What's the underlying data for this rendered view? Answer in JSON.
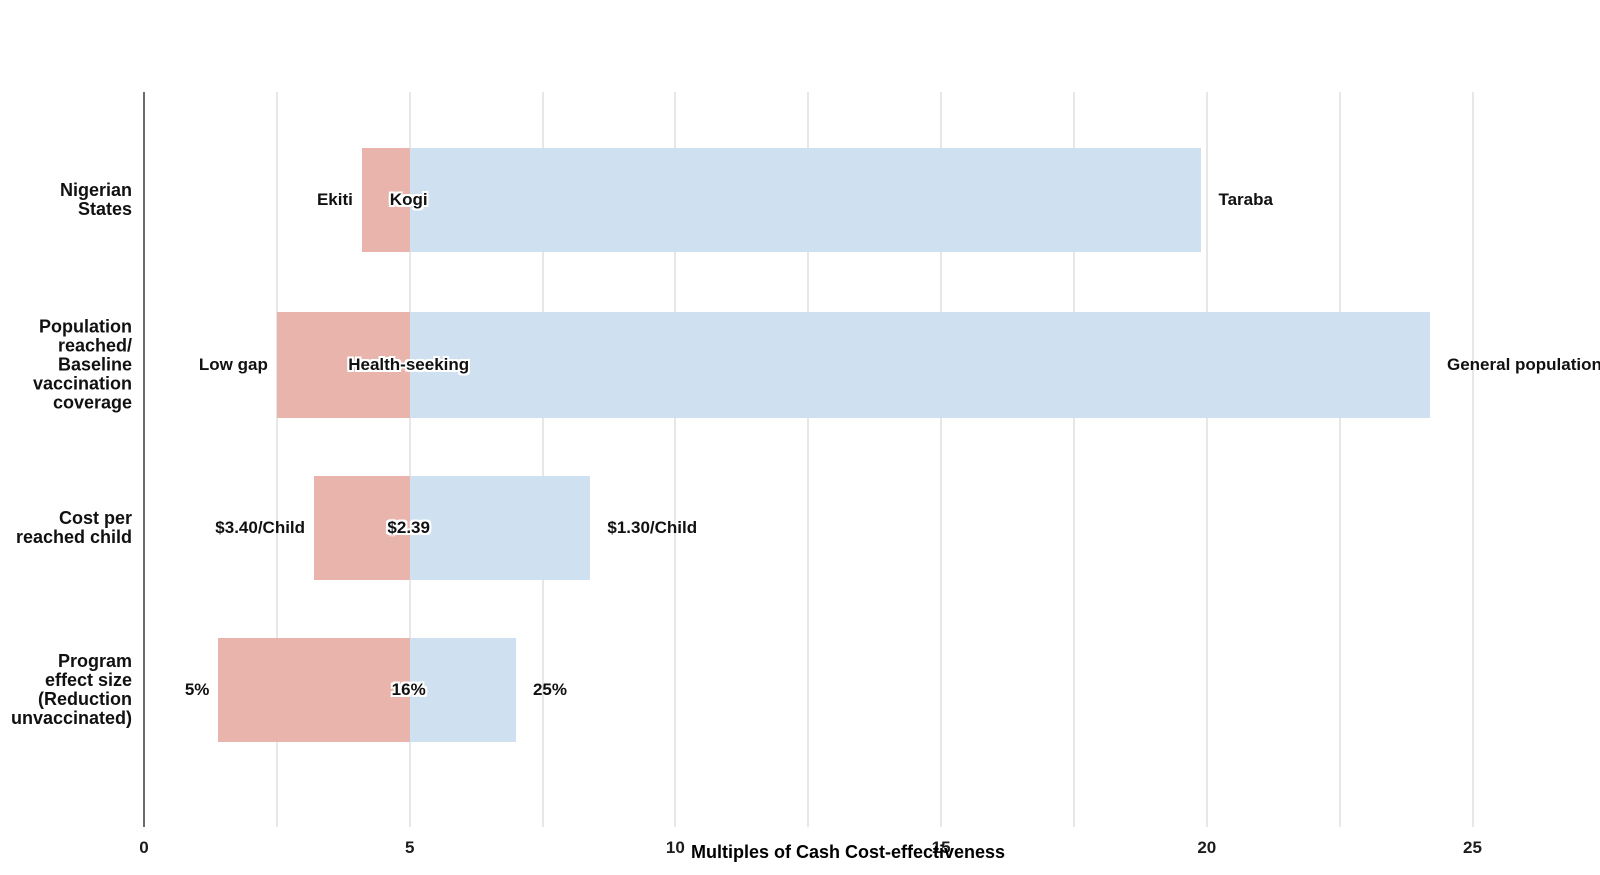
{
  "chart_data": {
    "type": "bar",
    "variant": "tornado-range",
    "title": "",
    "xlabel": "Multiples of Cash Cost-effectiveness",
    "x_ticks": [
      0,
      5,
      10,
      15,
      20,
      25
    ],
    "xlim": [
      0,
      27.4
    ],
    "gridline_step": 2.5,
    "grid": true,
    "legend": false,
    "reference_value": 5,
    "categories": [
      "Nigerian States",
      "Population reached/ Baseline vaccination coverage",
      "Cost per reached child",
      "Program effect size (Reduction unvaccinated)"
    ],
    "rows": [
      {
        "category_lines": [
          "Nigerian",
          "States"
        ],
        "low_value": 4.1,
        "mid_value": 5,
        "high_value": 19.9,
        "low_label": "Ekiti",
        "mid_label": "Kogi",
        "high_label": "Taraba"
      },
      {
        "category_lines": [
          "Population",
          "reached/",
          "Baseline",
          "vaccination",
          "coverage"
        ],
        "low_value": 2.5,
        "mid_value": 5,
        "high_value": 24.2,
        "low_label": "Low gap",
        "mid_label": "Health-seeking",
        "high_label": "General population"
      },
      {
        "category_lines": [
          "Cost per",
          "reached child"
        ],
        "low_value": 3.2,
        "mid_value": 5,
        "high_value": 8.4,
        "low_label": "$3.40/Child",
        "mid_label": "$2.39",
        "high_label": "$1.30/Child"
      },
      {
        "category_lines": [
          "Program",
          "effect size",
          "(Reduction",
          "unvaccinated)"
        ],
        "low_value": 1.4,
        "mid_value": 5,
        "high_value": 7.0,
        "low_label": "5%",
        "mid_label": "16%",
        "high_label": "25%"
      }
    ],
    "colors": {
      "low_segment": "#e8b4ac",
      "high_segment": "#cfe1f1",
      "gridline": "#e7e7e7",
      "axis_line": "#6b6b6b",
      "text": "#111111"
    }
  }
}
